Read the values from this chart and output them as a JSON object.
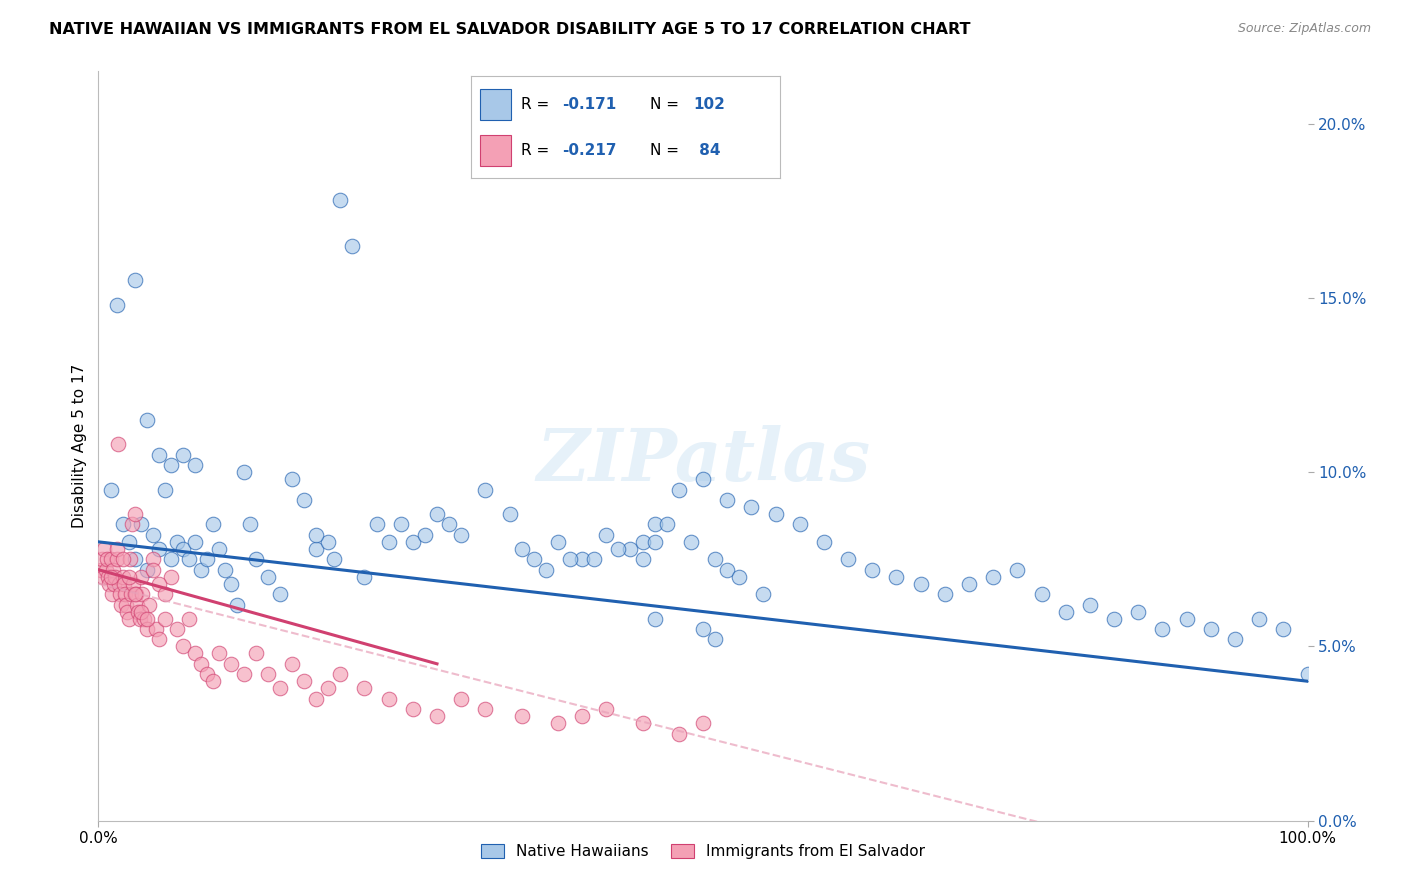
{
  "title": "NATIVE HAWAIIAN VS IMMIGRANTS FROM EL SALVADOR DISABILITY AGE 5 TO 17 CORRELATION CHART",
  "source": "Source: ZipAtlas.com",
  "ylabel": "Disability Age 5 to 17",
  "right_yticks": [
    0,
    5,
    10,
    15,
    20
  ],
  "right_yticklabels": [
    "0.0%",
    "5.0%",
    "10.0%",
    "15.0%",
    "20.0%"
  ],
  "blue_color": "#a8c8e8",
  "pink_color": "#f4a0b5",
  "blue_line_color": "#2060b0",
  "pink_line_color": "#d04070",
  "pink_dashed_color": "#e8a0b8",
  "watermark_text": "ZIPatlas",
  "legend_blue_r": "-0.171",
  "legend_blue_n": "102",
  "legend_pink_r": "-0.217",
  "legend_pink_n": " 84",
  "blue_trend_start_y": 8.0,
  "blue_trend_end_y": 4.0,
  "pink_solid_start_x": 0.0,
  "pink_solid_start_y": 7.2,
  "pink_solid_end_x": 28.0,
  "pink_solid_end_y": 4.5,
  "pink_dashed_start_x": 0.0,
  "pink_dashed_start_y": 6.8,
  "pink_dashed_end_x": 100.0,
  "pink_dashed_end_y": -2.0,
  "xlim": [
    0,
    100
  ],
  "ylim": [
    0,
    21.5
  ],
  "figsize": [
    14.06,
    8.92
  ],
  "dpi": 100,
  "blue_scatter_x": [
    1.0,
    1.5,
    2.0,
    2.5,
    3.0,
    3.5,
    4.0,
    4.5,
    5.0,
    5.5,
    6.0,
    6.5,
    7.0,
    7.5,
    8.0,
    8.5,
    9.0,
    9.5,
    10.0,
    10.5,
    11.0,
    11.5,
    12.0,
    12.5,
    13.0,
    14.0,
    15.0,
    16.0,
    17.0,
    18.0,
    19.0,
    20.0,
    21.0,
    22.0,
    23.0,
    24.0,
    25.0,
    26.0,
    27.0,
    28.0,
    29.0,
    30.0,
    32.0,
    34.0,
    36.0,
    38.0,
    40.0,
    42.0,
    44.0,
    46.0,
    48.0,
    50.0,
    52.0,
    54.0,
    56.0,
    58.0,
    60.0,
    62.0,
    64.0,
    66.0,
    68.0,
    70.0,
    72.0,
    74.0,
    76.0,
    78.0,
    80.0,
    82.0,
    84.0,
    86.0,
    88.0,
    90.0,
    92.0,
    94.0,
    96.0,
    98.0,
    100.0,
    3.0,
    4.0,
    5.0,
    6.0,
    7.0,
    8.0,
    35.0,
    37.0,
    39.0,
    41.0,
    43.0,
    45.0,
    46.0,
    50.0,
    51.0,
    18.0,
    19.5,
    45.0,
    46.0,
    47.0,
    49.0,
    51.0,
    52.0,
    53.0,
    55.0
  ],
  "blue_scatter_y": [
    9.5,
    14.8,
    8.5,
    8.0,
    7.5,
    8.5,
    7.2,
    8.2,
    7.8,
    9.5,
    7.5,
    8.0,
    7.8,
    7.5,
    8.0,
    7.2,
    7.5,
    8.5,
    7.8,
    7.2,
    6.8,
    6.2,
    10.0,
    8.5,
    7.5,
    7.0,
    6.5,
    9.8,
    9.2,
    7.8,
    8.0,
    17.8,
    16.5,
    7.0,
    8.5,
    8.0,
    8.5,
    8.0,
    8.2,
    8.8,
    8.5,
    8.2,
    9.5,
    8.8,
    7.5,
    8.0,
    7.5,
    8.2,
    7.8,
    8.5,
    9.5,
    9.8,
    9.2,
    9.0,
    8.8,
    8.5,
    8.0,
    7.5,
    7.2,
    7.0,
    6.8,
    6.5,
    6.8,
    7.0,
    7.2,
    6.5,
    6.0,
    6.2,
    5.8,
    6.0,
    5.5,
    5.8,
    5.5,
    5.2,
    5.8,
    5.5,
    4.2,
    15.5,
    11.5,
    10.5,
    10.2,
    10.5,
    10.2,
    7.8,
    7.2,
    7.5,
    7.5,
    7.8,
    8.0,
    5.8,
    5.5,
    5.2,
    8.2,
    7.5,
    7.5,
    8.0,
    8.5,
    8.0,
    7.5,
    7.2,
    7.0,
    6.5
  ],
  "pink_scatter_x": [
    0.2,
    0.3,
    0.4,
    0.5,
    0.6,
    0.7,
    0.8,
    0.9,
    1.0,
    1.1,
    1.2,
    1.3,
    1.4,
    1.5,
    1.6,
    1.7,
    1.8,
    1.9,
    2.0,
    2.1,
    2.2,
    2.3,
    2.4,
    2.5,
    2.6,
    2.7,
    2.8,
    2.9,
    3.0,
    3.1,
    3.2,
    3.3,
    3.4,
    3.5,
    3.6,
    3.8,
    4.0,
    4.2,
    4.5,
    4.8,
    5.0,
    5.5,
    6.0,
    6.5,
    7.0,
    7.5,
    8.0,
    8.5,
    9.0,
    9.5,
    10.0,
    11.0,
    12.0,
    13.0,
    14.0,
    15.0,
    16.0,
    17.0,
    18.0,
    19.0,
    20.0,
    22.0,
    24.0,
    26.0,
    28.0,
    30.0,
    32.0,
    35.0,
    38.0,
    40.0,
    42.0,
    45.0,
    48.0,
    50.0,
    1.0,
    1.5,
    2.0,
    2.5,
    3.0,
    3.5,
    4.0,
    4.5,
    5.0,
    5.5
  ],
  "pink_scatter_y": [
    7.2,
    7.5,
    7.0,
    7.8,
    7.2,
    7.5,
    7.0,
    6.8,
    7.5,
    6.5,
    7.2,
    6.8,
    7.0,
    7.5,
    10.8,
    6.8,
    6.5,
    6.2,
    7.0,
    6.8,
    6.5,
    6.2,
    6.0,
    5.8,
    7.5,
    6.5,
    8.5,
    6.8,
    8.8,
    6.5,
    6.2,
    6.0,
    5.8,
    7.0,
    6.5,
    5.8,
    5.5,
    6.2,
    7.5,
    5.5,
    5.2,
    5.8,
    7.0,
    5.5,
    5.0,
    5.8,
    4.8,
    4.5,
    4.2,
    4.0,
    4.8,
    4.5,
    4.2,
    4.8,
    4.2,
    3.8,
    4.5,
    4.0,
    3.5,
    3.8,
    4.2,
    3.8,
    3.5,
    3.2,
    3.0,
    3.5,
    3.2,
    3.0,
    2.8,
    3.0,
    3.2,
    2.8,
    2.5,
    2.8,
    7.0,
    7.8,
    7.5,
    7.0,
    6.5,
    6.0,
    5.8,
    7.2,
    6.8,
    6.5
  ]
}
